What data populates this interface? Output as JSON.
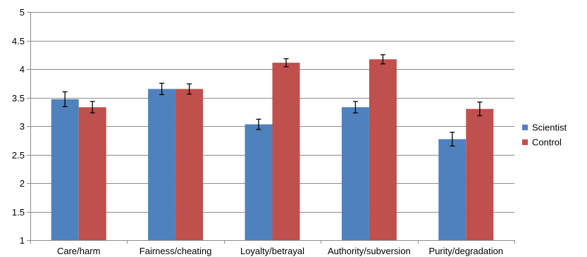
{
  "chart_data": {
    "type": "bar",
    "title": "",
    "xlabel": "",
    "ylabel": "",
    "ylim": [
      1,
      5
    ],
    "yticks": [
      "1",
      "1.5",
      "2",
      "2.5",
      "3",
      "3.5",
      "4",
      "4.5",
      "5"
    ],
    "grid": "horizontal",
    "legend_position": "right",
    "categories": [
      "Care/harm",
      "Fairness/cheating",
      "Loyalty/betrayal",
      "Authority/subversion",
      "Purity/degradation"
    ],
    "series": [
      {
        "name": "Scientist",
        "color": "#4f81bd",
        "values": [
          3.47,
          3.65,
          3.03,
          3.33,
          2.77
        ],
        "error": [
          0.13,
          0.1,
          0.09,
          0.1,
          0.12
        ]
      },
      {
        "name": "Control",
        "color": "#c0504d",
        "values": [
          3.33,
          3.65,
          4.11,
          4.17,
          3.3
        ],
        "error": [
          0.1,
          0.09,
          0.07,
          0.08,
          0.12
        ]
      }
    ]
  }
}
